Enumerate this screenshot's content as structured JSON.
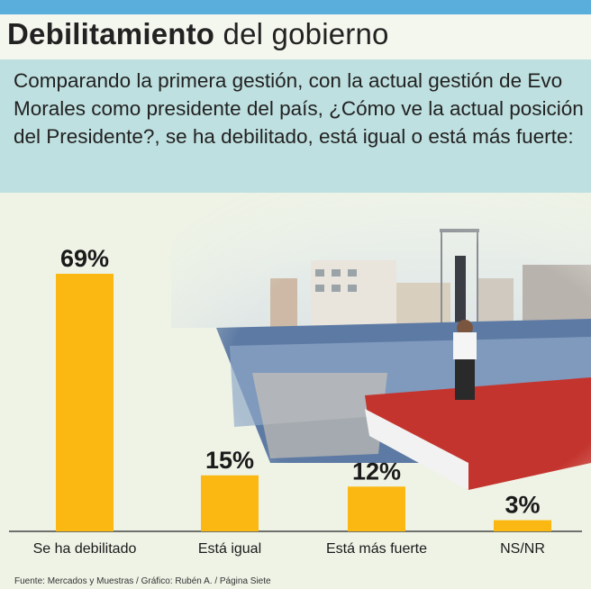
{
  "header": {
    "title_bold": "Debilitamiento",
    "title_light": "del gobierno"
  },
  "question": "Comparando la primera gestión, con la actual gestión de Evo Morales como presidente del país, ¿Cómo ve la actual posición del Presidente?, se ha debilitado, está igual o está más fuerte:",
  "chart_data": {
    "type": "bar",
    "categories": [
      "Se ha debilitado",
      "Está igual",
      "Está más fuerte",
      "NS/NR"
    ],
    "values": [
      69,
      15,
      12,
      3
    ],
    "value_labels": [
      "69%",
      "15%",
      "12%",
      "3%"
    ],
    "ylim": [
      0,
      69
    ],
    "bar_color": "#fbb813",
    "grid": false,
    "legend": "none"
  },
  "footer": "Fuente: Mercados y Muestras / Gráfico: Rubén A. / Página Siete",
  "colors": {
    "top_bar": "#5aaedc",
    "question_box": "#bfe0e0",
    "bar": "#fbb813"
  }
}
